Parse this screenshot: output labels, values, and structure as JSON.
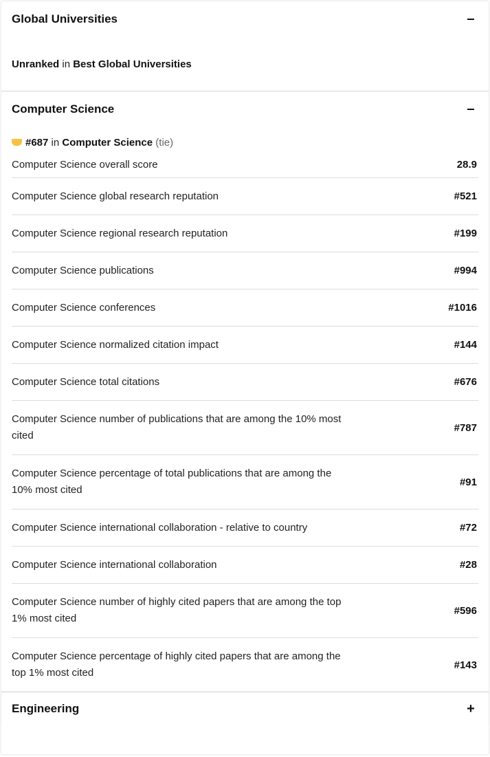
{
  "global": {
    "title": "Global Universities",
    "rank_status": "Unranked",
    "in_word": "in",
    "list_name": "Best Global Universities"
  },
  "cs": {
    "title": "Computer Science",
    "rank": "#687",
    "in_word": "in",
    "subject": "Computer Science",
    "tie": "(tie)",
    "rows": [
      {
        "label": "Computer Science overall score",
        "value": "28.9"
      },
      {
        "label": "Computer Science global research reputation",
        "value": "#521"
      },
      {
        "label": "Computer Science regional research reputation",
        "value": "#199"
      },
      {
        "label": "Computer Science publications",
        "value": "#994"
      },
      {
        "label": "Computer Science conferences",
        "value": "#1016"
      },
      {
        "label": "Computer Science normalized citation impact",
        "value": "#144"
      },
      {
        "label": "Computer Science total citations",
        "value": "#676"
      },
      {
        "label": "Computer Science number of publications that are among the 10% most cited",
        "value": "#787"
      },
      {
        "label": "Computer Science percentage of total publications that are among the 10% most cited",
        "value": "#91"
      },
      {
        "label": "Computer Science international collaboration - relative to country",
        "value": "#72"
      },
      {
        "label": "Computer Science international collaboration",
        "value": "#28"
      },
      {
        "label": "Computer Science number of highly cited papers that are among the top 1% most cited",
        "value": "#596"
      },
      {
        "label": "Computer Science percentage of highly cited papers that are among the top 1% most cited",
        "value": "#143"
      }
    ]
  },
  "engineering": {
    "title": "Engineering",
    "toggle": "+"
  },
  "icons": {
    "collapse": "minus-icon",
    "expand": "plus-icon",
    "badge": "ranking-badge-icon"
  },
  "colors": {
    "badge": "#f5c242",
    "divider": "#dcdcdc"
  }
}
